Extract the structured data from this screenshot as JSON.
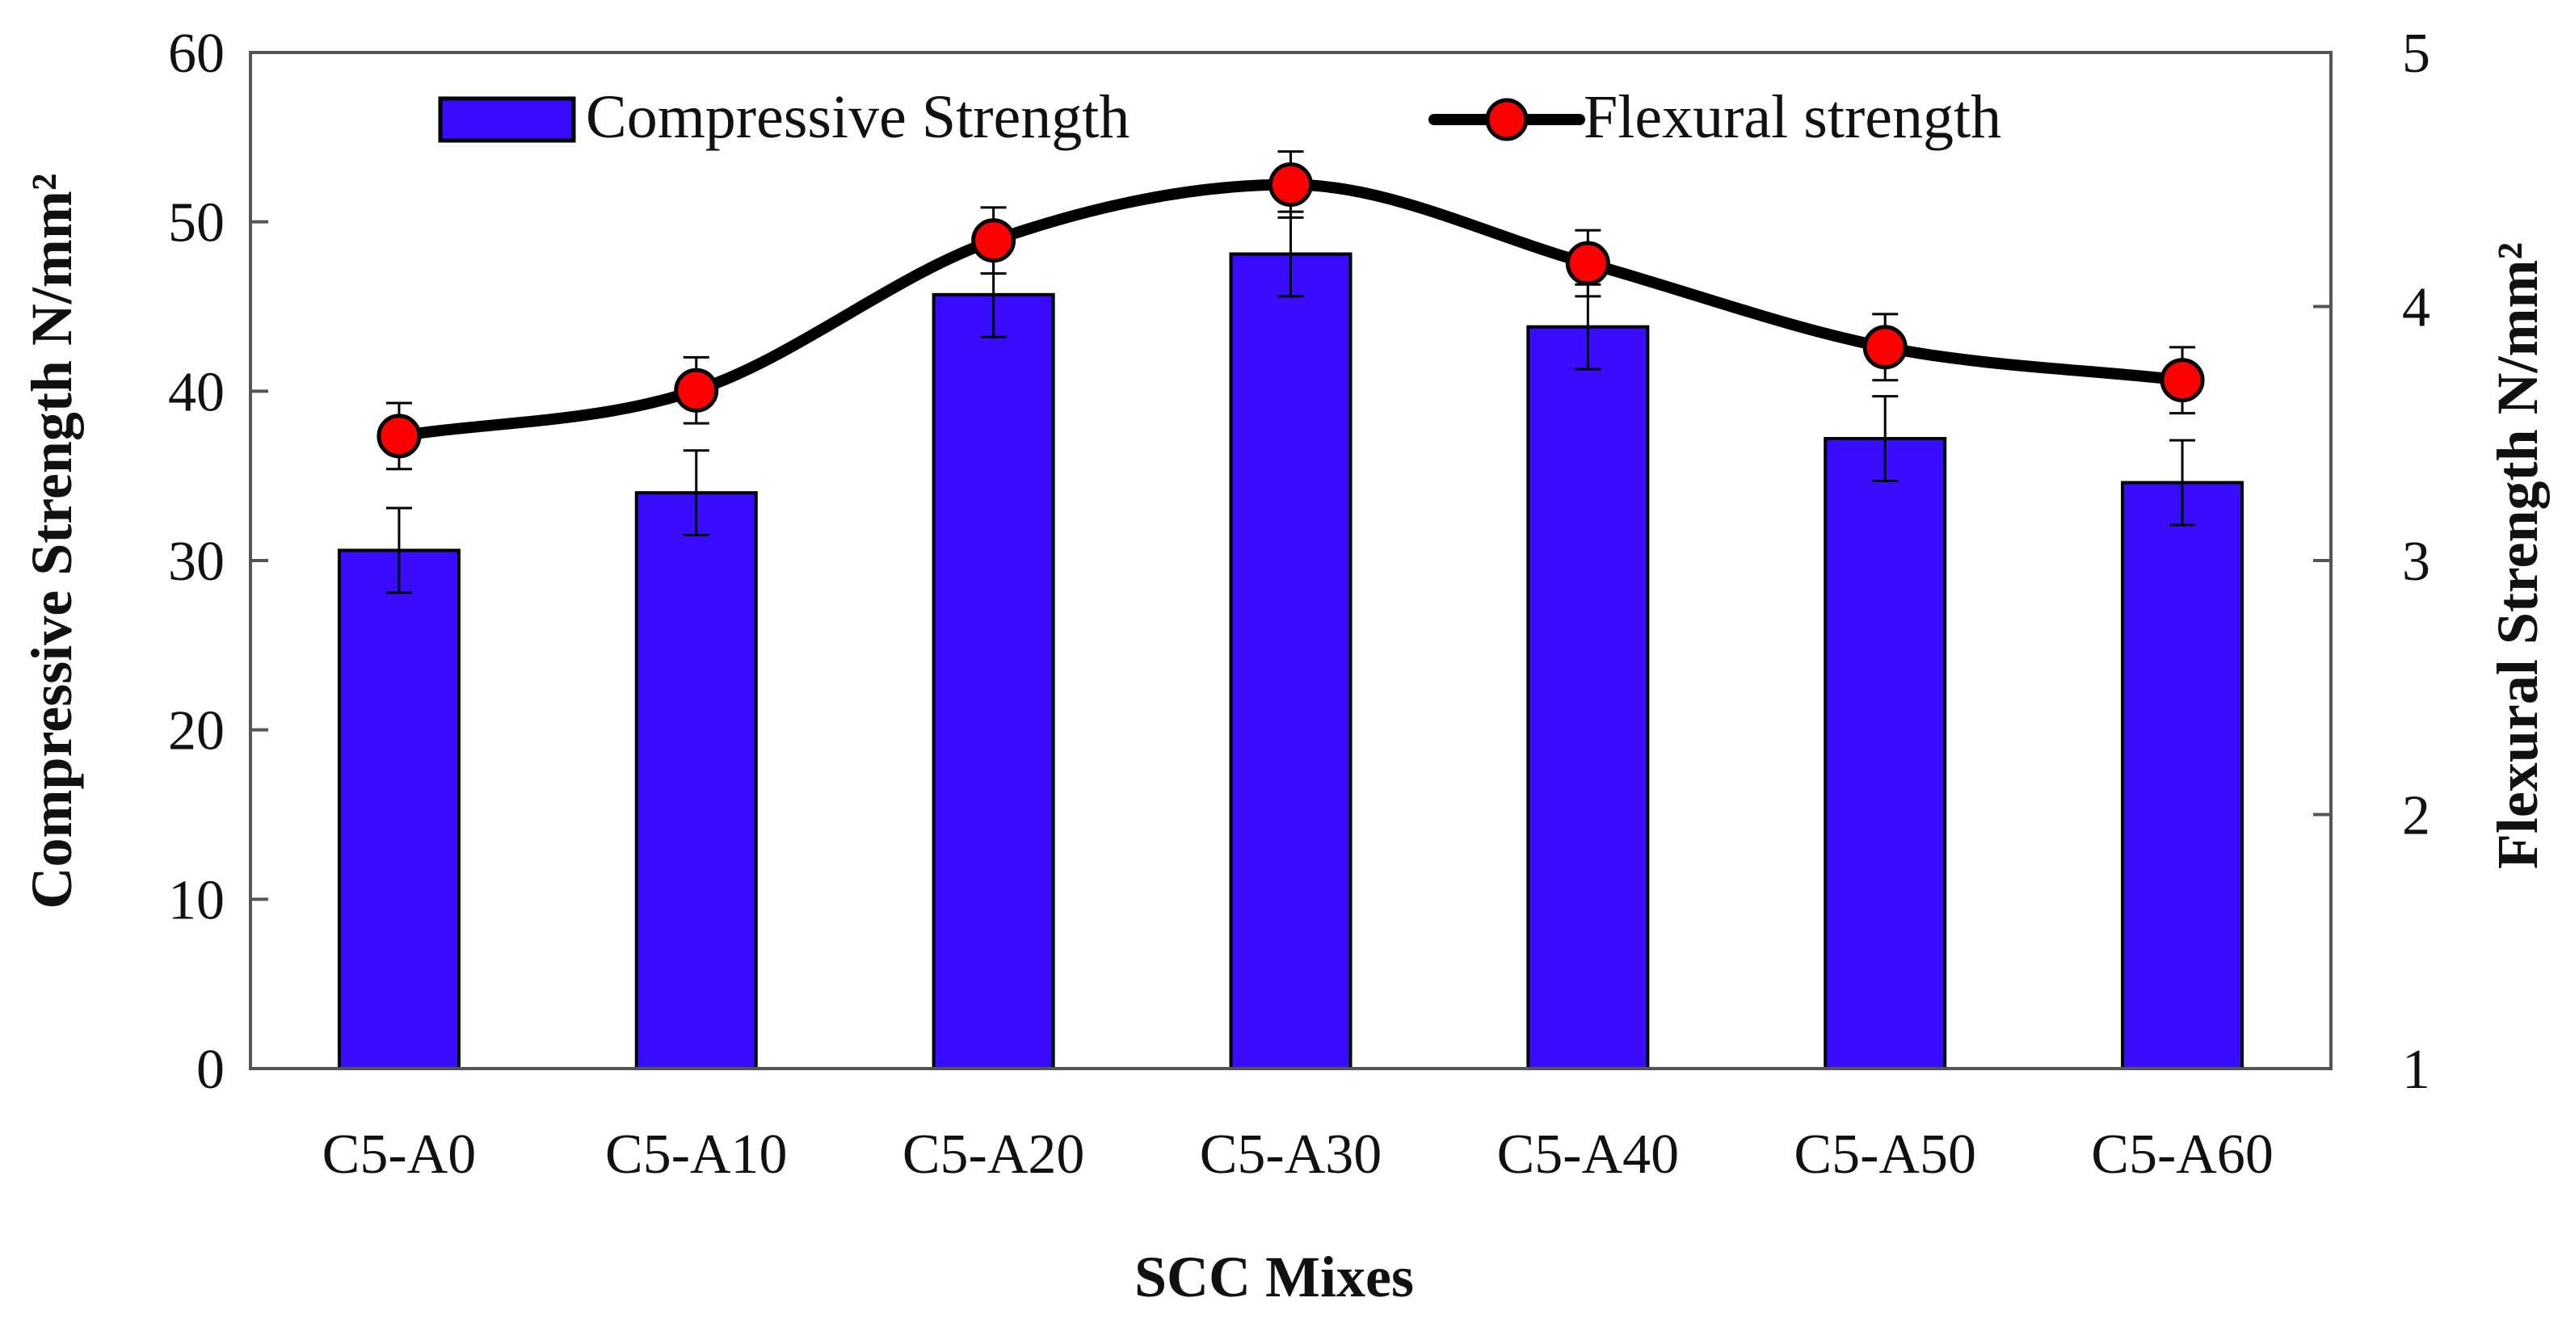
{
  "chart_data": {
    "type": "bar",
    "categories": [
      "C5-A0",
      "C5-A10",
      "C5-A20",
      "C5-A30",
      "C5-A40",
      "C5-A50",
      "C5-A60"
    ],
    "series": [
      {
        "name": "Compressive Strength",
        "kind": "bar",
        "axis": "left",
        "values": [
          30.6,
          34.0,
          45.7,
          48.1,
          43.8,
          37.2,
          34.6
        ],
        "error": [
          2.5,
          2.5,
          2.5,
          2.5,
          2.5,
          2.5,
          2.5
        ],
        "color": "#3a0cff"
      },
      {
        "name": "Flexural strength",
        "kind": "line",
        "axis": "right",
        "smooth": true,
        "values": [
          3.49,
          3.67,
          4.26,
          4.48,
          4.17,
          3.84,
          3.71
        ],
        "error": [
          0.13,
          0.13,
          0.13,
          0.13,
          0.13,
          0.13,
          0.13
        ],
        "color": "#ff0000"
      }
    ],
    "title": "",
    "xlabel": "SCC Mixes",
    "ylabel": "Compressive Strength N/mm²",
    "y2label": "Flexural Strength N/mm²",
    "ylim": [
      0,
      60
    ],
    "y2lim": [
      1,
      5
    ],
    "yticks": [
      "0",
      "10",
      "20",
      "30",
      "40",
      "50",
      "60"
    ],
    "y2ticks": [
      "1",
      "2",
      "3",
      "4",
      "5"
    ],
    "grid": false,
    "legend_position": "top"
  }
}
